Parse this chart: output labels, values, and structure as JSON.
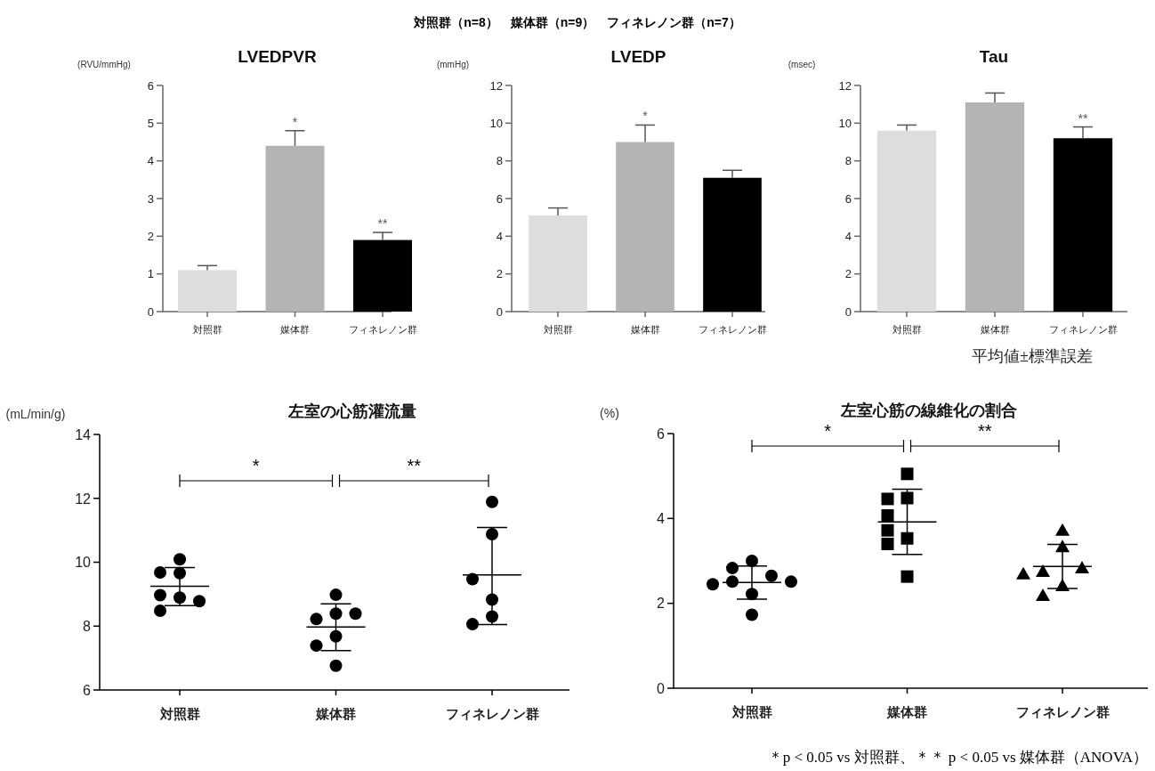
{
  "chart_data": [
    {
      "type": "other",
      "annotations": [
        "対照群（n=8）　媒体群（n=9）　フィネレノン群（n=7）"
      ]
    },
    {
      "type": "bar",
      "title": "LVEDPVR",
      "ylabel": "(RVU/mmHg)",
      "categories": [
        "対照群",
        "媒体群",
        "フィネレノン群"
      ],
      "values": [
        1.1,
        4.4,
        1.9
      ],
      "colors": [
        "#dcdddd",
        "#b3b4b4",
        "#000000"
      ],
      "errors": [
        0.12,
        0.4,
        0.2
      ],
      "ylim": [
        0,
        6
      ],
      "yticks": [
        0,
        1,
        2,
        3,
        4,
        5,
        6
      ],
      "annotations": [
        {
          "text": "*",
          "x": "媒体群",
          "y": 4.8
        },
        {
          "text": "**",
          "x": "フィネレノン群",
          "y": 2.1
        }
      ]
    },
    {
      "type": "bar",
      "title": "LVEDP",
      "ylabel": "(mmHg)",
      "categories": [
        "対照群",
        "媒体群",
        "フィネレノン群"
      ],
      "values": [
        5.1,
        9.0,
        7.1
      ],
      "colors": [
        "#dcdddd",
        "#b3b4b4",
        "#000000"
      ],
      "errors": [
        0.4,
        0.9,
        0.4
      ],
      "ylim": [
        0,
        12
      ],
      "yticks": [
        0,
        2,
        4,
        6,
        8,
        10,
        12
      ],
      "annotations": [
        {
          "text": "*",
          "x": "媒体群",
          "y": 9.9
        }
      ]
    },
    {
      "type": "bar",
      "title": "Tau",
      "ylabel": "(msec)",
      "categories": [
        "対照群",
        "媒体群",
        "フィネレノン群"
      ],
      "values": [
        9.6,
        11.1,
        9.2
      ],
      "colors": [
        "#dcdddd",
        "#b3b4b4",
        "#000000"
      ],
      "errors": [
        0.3,
        0.5,
        0.6
      ],
      "ylim": [
        0,
        12
      ],
      "yticks": [
        0,
        2,
        4,
        6,
        8,
        10,
        12
      ],
      "annotations": [
        {
          "text": "**",
          "x": "フィネレノン群",
          "y": 9.8
        },
        "平均値±標準誤差"
      ]
    },
    {
      "type": "scatter",
      "title": "左室の心筋灌流量",
      "ylabel": "(mL/min/g)",
      "categories": [
        "対照群",
        "媒体群",
        "フィネレノン群"
      ],
      "ylim": [
        6,
        14
      ],
      "yticks": [
        6,
        8,
        10,
        12,
        14
      ],
      "annotations": [
        "*",
        "**"
      ],
      "series": [
        {
          "type": "scatter",
          "marker": "circle",
          "color": "#000000",
          "x": [
            "対照群",
            "対照群",
            "対照群",
            "対照群",
            "対照群",
            "対照群",
            "対照群"
          ],
          "values": [
            10.09,
            9.66,
            9.68,
            8.89,
            8.97,
            8.78,
            8.48
          ]
        },
        {
          "type": "scatter",
          "marker": "circle",
          "color": "#000000",
          "x": [
            "媒体群",
            "媒体群",
            "媒体群",
            "媒体群",
            "媒体群",
            "媒体群",
            "媒体群"
          ],
          "values": [
            8.98,
            8.39,
            8.22,
            8.39,
            7.68,
            7.39,
            6.76
          ]
        },
        {
          "type": "scatter",
          "marker": "circle",
          "color": "#000000",
          "x": [
            "フィネレノン群",
            "フィネレノン群",
            "フィネレノン群",
            "フィネレノン群",
            "フィネレノン群",
            "フィネレノン群"
          ],
          "values": [
            11.89,
            10.88,
            9.47,
            8.83,
            8.3,
            8.06
          ]
        },
        {
          "type": "box",
          "color": "#000000",
          "boxes": [
            {
              "low": 8.64,
              "q1": 9.25,
              "median": 9.25,
              "q3": 9.25,
              "high": 9.83
            },
            {
              "low": 7.23,
              "q1": 7.97,
              "median": 7.97,
              "q3": 7.97,
              "high": 8.7
            },
            {
              "low": 8.05,
              "q1": 9.6,
              "median": 9.6,
              "q3": 9.6,
              "high": 11.09
            }
          ]
        }
      ]
    },
    {
      "type": "scatter",
      "title": "左室心筋の線維化の割合",
      "ylabel": "(%)",
      "categories": [
        "対照群",
        "媒体群",
        "フィネレノン群"
      ],
      "ylim": [
        0,
        6
      ],
      "yticks": [
        0,
        2,
        4,
        6
      ],
      "annotations": [
        "*",
        "**"
      ],
      "series": [
        {
          "type": "scatter",
          "marker": "circle",
          "color": "#000000",
          "x": [
            "対照群",
            "対照群",
            "対照群",
            "対照群",
            "対照群",
            "対照群",
            "対照群",
            "対照群"
          ],
          "values": [
            3.0,
            2.83,
            2.65,
            2.51,
            2.45,
            2.51,
            2.22,
            1.73
          ]
        },
        {
          "type": "scatter",
          "marker": "square",
          "color": "#000000",
          "x": [
            "媒体群",
            "媒体群",
            "媒体群",
            "媒体群",
            "媒体群",
            "媒体群",
            "媒体群",
            "媒体群"
          ],
          "values": [
            5.05,
            4.48,
            4.46,
            4.07,
            3.72,
            3.53,
            3.4,
            2.63
          ]
        },
        {
          "type": "scatter",
          "marker": "triangle",
          "color": "#000000",
          "x": [
            "フィネレノン群",
            "フィネレノン群",
            "フィネレノン群",
            "フィネレノン群",
            "フィネレノン群",
            "フィネレノン群",
            "フィネレノン群"
          ],
          "values": [
            3.72,
            3.33,
            2.75,
            2.83,
            2.69,
            2.41,
            2.18
          ]
        },
        {
          "type": "box",
          "color": "#000000",
          "boxes": [
            {
              "low": 2.1,
              "q1": 2.49,
              "median": 2.49,
              "q3": 2.49,
              "high": 2.88
            },
            {
              "low": 3.15,
              "q1": 3.92,
              "median": 3.92,
              "q3": 3.92,
              "high": 4.69
            },
            {
              "low": 2.35,
              "q1": 2.87,
              "median": 2.87,
              "q3": 2.87,
              "high": 3.39
            }
          ]
        }
      ]
    },
    {
      "type": "other",
      "annotations": [
        "＊p < 0.05 vs 対照群、＊＊ p < 0.05 vs 媒体群（ANOVA）"
      ]
    }
  ]
}
